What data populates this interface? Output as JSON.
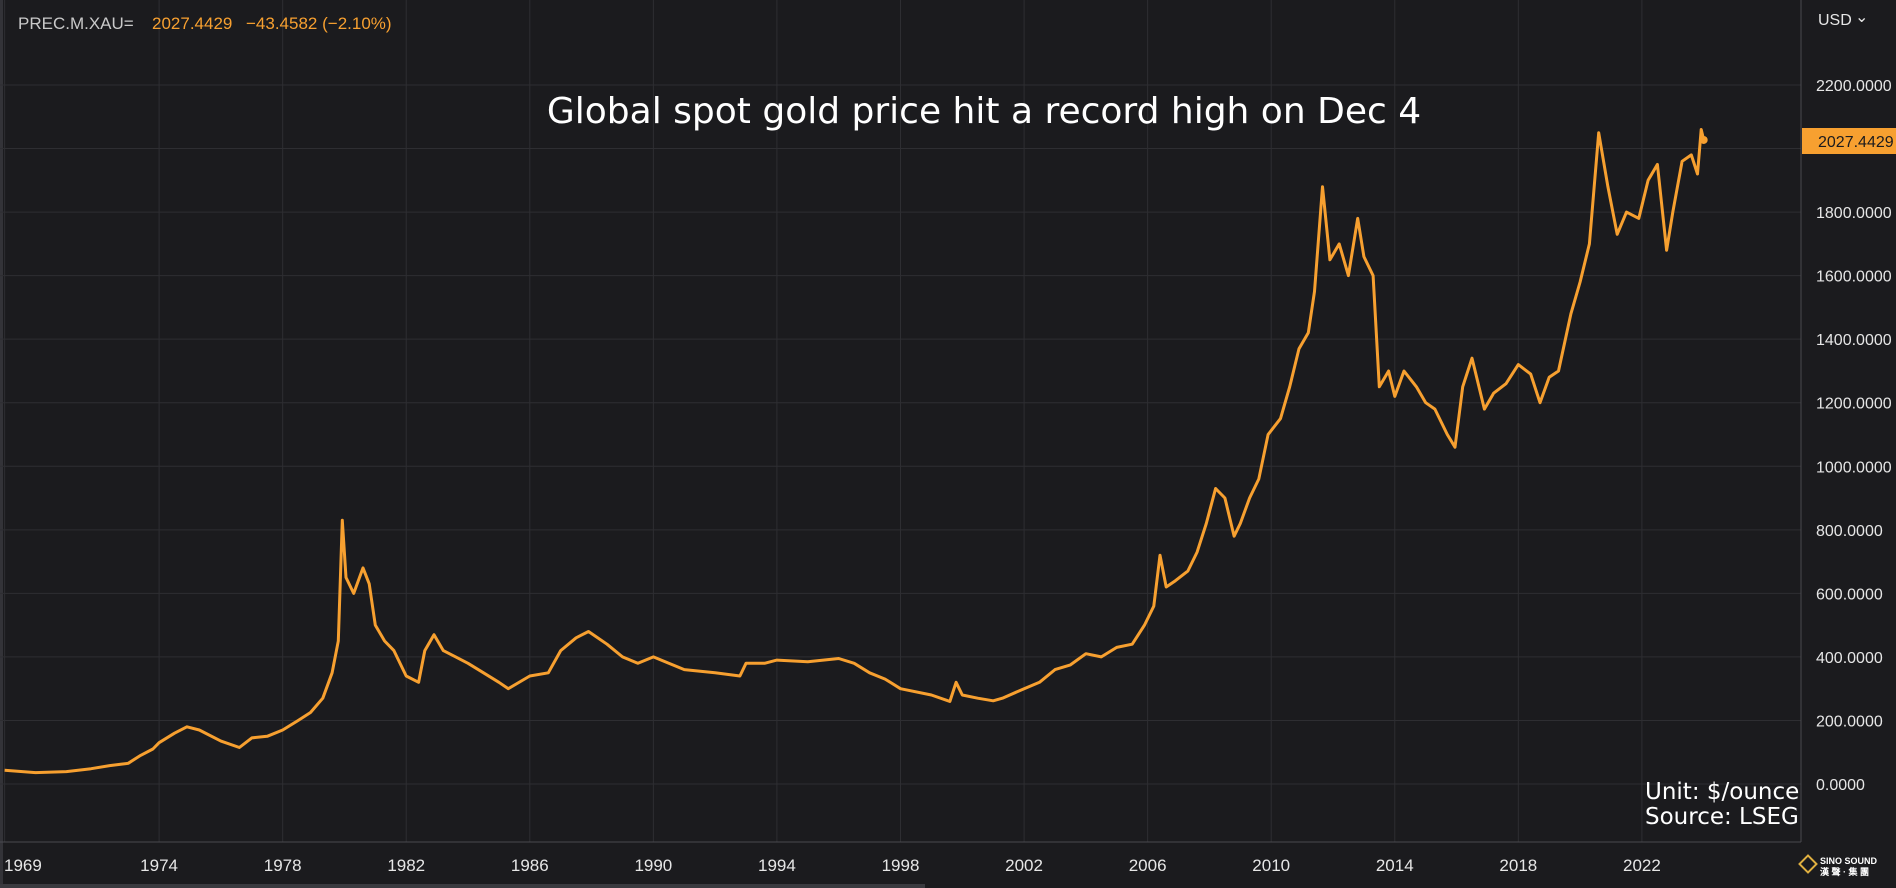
{
  "header": {
    "ticker": "PREC.M.XAU=",
    "price": "2027.4429",
    "change": "−43.4582 (−2.10%)",
    "currency_label": "USD",
    "currency_arrow": "⌄"
  },
  "annotations": {
    "unit": "Unit: $/ounce",
    "source": "Source: LSEG"
  },
  "last_price_badge": "2027.4429",
  "logo": {
    "line1": "SINO SOUND",
    "line2": "漢 聲 · 集 團"
  },
  "colors": {
    "background": "#1b1b1e",
    "line": "#f7a030",
    "grid": "#2e2e32",
    "text": "#e6e6e6"
  },
  "chart_data": {
    "type": "line",
    "title": "Global spot gold price hit a record high on Dec 4",
    "xlabel": "",
    "ylabel": "",
    "y_axis_side": "right",
    "grid": true,
    "xlim": [
      1968.85,
      2027.15
    ],
    "ylim": [
      0,
      2200
    ],
    "x_ticks": [
      1969,
      1974,
      1978,
      1982,
      1986,
      1990,
      1994,
      1998,
      2002,
      2006,
      2010,
      2014,
      2018,
      2022
    ],
    "x_tick_labels": [
      "1969",
      "1974",
      "1978",
      "1982",
      "1986",
      "1990",
      "1994",
      "1998",
      "2002",
      "2006",
      "2010",
      "2014",
      "2018",
      "2022"
    ],
    "y_ticks": [
      0,
      200,
      400,
      600,
      800,
      1000,
      1200,
      1400,
      1600,
      1800,
      2000,
      2200
    ],
    "y_tick_labels": [
      "0.0000",
      "200.0000",
      "400.0000",
      "600.0000",
      "800.0000",
      "1000.0000",
      "1200.0000",
      "1400.0000",
      "1600.0000",
      "1800.0000",
      "",
      "2200.0000"
    ],
    "series": [
      {
        "x": [
          1969.0,
          1970.0,
          1971.0,
          1971.8,
          1972.4,
          1973.0,
          1973.4,
          1973.8,
          1974.0,
          1974.5,
          1974.9,
          1975.3,
          1976.0,
          1976.6,
          1977.0,
          1977.5,
          1978.0,
          1978.5,
          1978.9,
          1979.3,
          1979.6,
          1979.8,
          1979.93,
          1980.05,
          1980.3,
          1980.6,
          1980.8,
          1981.0,
          1981.3,
          1981.6,
          1982.0,
          1982.4,
          1982.6,
          1982.9,
          1983.2,
          1983.6,
          1984.0,
          1984.5,
          1985.0,
          1985.3,
          1986.0,
          1986.6,
          1987.0,
          1987.5,
          1987.9,
          1988.5,
          1989.0,
          1989.5,
          1990.0,
          1990.5,
          1991.0,
          1992.0,
          1992.8,
          1993.0,
          1993.6,
          1994.0,
          1995.0,
          1996.0,
          1996.5,
          1997.0,
          1997.5,
          1998.0,
          1999.0,
          1999.6,
          1999.8,
          2000.0,
          2000.5,
          2001.0,
          2001.3,
          2002.0,
          2002.5,
          2003.0,
          2003.5,
          2004.0,
          2004.5,
          2005.0,
          2005.5,
          2005.9,
          2006.2,
          2006.4,
          2006.6,
          2006.9,
          2007.3,
          2007.6,
          2007.9,
          2008.2,
          2008.5,
          2008.8,
          2009.0,
          2009.3,
          2009.6,
          2009.9,
          2010.3,
          2010.6,
          2010.9,
          2011.2,
          2011.4,
          2011.66,
          2011.9,
          2012.2,
          2012.5,
          2012.8,
          2013.0,
          2013.3,
          2013.5,
          2013.8,
          2014.0,
          2014.3,
          2014.7,
          2015.0,
          2015.3,
          2015.7,
          2015.95,
          2016.2,
          2016.5,
          2016.9,
          2017.2,
          2017.6,
          2018.0,
          2018.4,
          2018.7,
          2019.0,
          2019.3,
          2019.7,
          2020.0,
          2020.3,
          2020.6,
          2020.9,
          2021.2,
          2021.5,
          2021.9,
          2022.2,
          2022.5,
          2022.8,
          2023.0,
          2023.3,
          2023.6,
          2023.8,
          2023.92,
          2024.0
        ],
        "y": [
          43,
          36,
          39,
          48,
          58,
          65,
          90,
          110,
          130,
          160,
          180,
          170,
          135,
          115,
          145,
          150,
          170,
          200,
          225,
          270,
          350,
          450,
          830,
          650,
          600,
          680,
          630,
          500,
          450,
          420,
          340,
          320,
          420,
          470,
          420,
          400,
          380,
          350,
          320,
          300,
          340,
          350,
          420,
          460,
          480,
          440,
          400,
          380,
          400,
          380,
          360,
          350,
          340,
          380,
          380,
          390,
          385,
          395,
          380,
          350,
          330,
          300,
          280,
          260,
          320,
          280,
          270,
          262,
          270,
          300,
          320,
          360,
          375,
          410,
          400,
          430,
          440,
          500,
          560,
          720,
          620,
          640,
          670,
          730,
          820,
          930,
          900,
          780,
          820,
          900,
          960,
          1100,
          1150,
          1250,
          1370,
          1420,
          1550,
          1880,
          1650,
          1700,
          1600,
          1780,
          1660,
          1600,
          1250,
          1300,
          1220,
          1300,
          1250,
          1200,
          1180,
          1100,
          1060,
          1250,
          1340,
          1180,
          1230,
          1260,
          1320,
          1290,
          1200,
          1280,
          1300,
          1480,
          1580,
          1700,
          2050,
          1880,
          1730,
          1800,
          1780,
          1900,
          1950,
          1680,
          1800,
          1960,
          1980,
          1920,
          2060,
          2027
        ]
      }
    ]
  }
}
